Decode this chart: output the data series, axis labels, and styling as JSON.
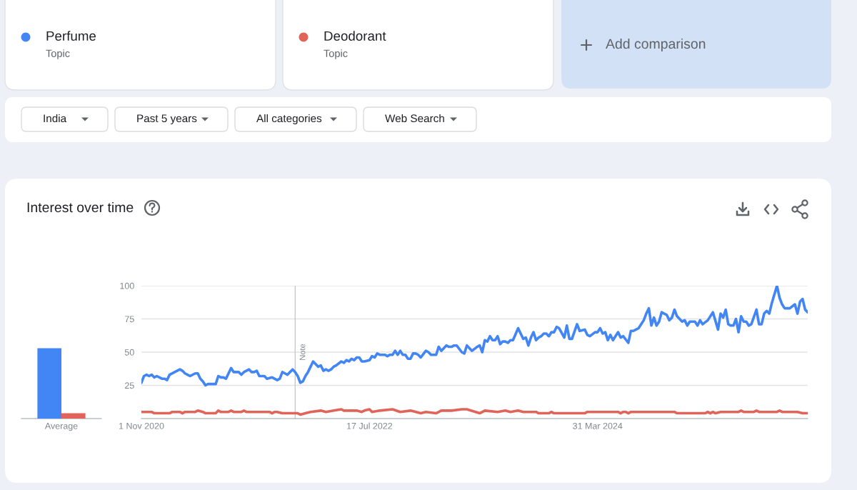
{
  "chart_data": [
    {
      "type": "bar",
      "title": "Interest over time",
      "categories": [
        "Average"
      ],
      "series": [
        {
          "color": "#4285f4",
          "values": [
            53
          ]
        },
        {
          "color": "#e0645a",
          "values": [
            4
          ]
        }
      ],
      "ylim": [
        0,
        100
      ],
      "tick_labels": "x"
    },
    {
      "type": "line",
      "annotations": [
        "Topic",
        "Topic",
        "Add comparison",
        "India",
        "Past 5 years",
        "All categories",
        "Web Search"
      ],
      "legend": "top",
      "grid": "y",
      "line_style": "solid",
      "xlim": [
        "2020-11-01",
        "2025-10-26"
      ],
      "ylim": [
        0,
        100
      ],
      "yticks": [
        25,
        50,
        75,
        100
      ],
      "xticks": [
        {
          "value": "2020-11-01",
          "label": "1 Nov 2020"
        },
        {
          "value": "2022-07-17",
          "label": "17 Jul 2022"
        },
        {
          "value": "2024-03-31",
          "label": "31 Mar 2024"
        }
      ],
      "ref_lines": [
        {
          "axis": "x",
          "value": "2021-12-26",
          "label": "Note",
          "color": "#c8c8c8"
        }
      ],
      "series": [
        {
          "name": "Perfume",
          "color": "#4285f4",
          "x": [
            "2020-11-01",
            "2020-11-08",
            "2020-11-15",
            "2020-11-22",
            "2020-11-29",
            "2020-12-06",
            "2020-12-13",
            "2020-12-27",
            "2021-01-03",
            "2021-01-10",
            "2021-01-17",
            "2021-01-31",
            "2021-02-14",
            "2021-02-21",
            "2021-02-28",
            "2021-03-07",
            "2021-03-14",
            "2021-03-28",
            "2021-04-04",
            "2021-04-11",
            "2021-04-18",
            "2021-04-25",
            "2021-05-02",
            "2021-05-23",
            "2021-05-30",
            "2021-06-06",
            "2021-06-13",
            "2021-06-20",
            "2021-07-04",
            "2021-07-11",
            "2021-07-25",
            "2021-08-01",
            "2021-08-08",
            "2021-08-22",
            "2021-08-29",
            "2021-09-05",
            "2021-09-12",
            "2021-09-19",
            "2021-10-03",
            "2021-10-10",
            "2021-10-24",
            "2021-11-07",
            "2021-11-14",
            "2021-11-21",
            "2021-11-28",
            "2021-12-05",
            "2021-12-19",
            "2021-12-26",
            "2022-01-02",
            "2022-01-09",
            "2022-01-16",
            "2022-01-23",
            "2022-01-30",
            "2022-02-13",
            "2022-02-20",
            "2022-02-27",
            "2022-03-06",
            "2022-03-13",
            "2022-03-20",
            "2022-03-27",
            "2022-04-03",
            "2022-04-10",
            "2022-04-17",
            "2022-05-01",
            "2022-05-08",
            "2022-05-15",
            "2022-05-22",
            "2022-05-29",
            "2022-06-05",
            "2022-06-12",
            "2022-06-19",
            "2022-06-26",
            "2022-07-03",
            "2022-07-17",
            "2022-07-24",
            "2022-07-31",
            "2022-08-07",
            "2022-08-14",
            "2022-08-21",
            "2022-08-28",
            "2022-09-04",
            "2022-09-11",
            "2022-09-18",
            "2022-09-25",
            "2022-10-02",
            "2022-10-09",
            "2022-10-16",
            "2022-10-23",
            "2022-10-30",
            "2022-11-06",
            "2022-11-13",
            "2022-11-20",
            "2022-11-27",
            "2022-12-04",
            "2022-12-18",
            "2022-12-25",
            "2023-01-01",
            "2023-01-15",
            "2023-01-22",
            "2023-01-29",
            "2023-02-05",
            "2023-02-12",
            "2023-02-19",
            "2023-02-26",
            "2023-03-05",
            "2023-03-12",
            "2023-03-26",
            "2023-04-02",
            "2023-04-09",
            "2023-04-16",
            "2023-04-23",
            "2023-05-07",
            "2023-05-14",
            "2023-05-21",
            "2023-05-28",
            "2023-06-04",
            "2023-06-11",
            "2023-06-18",
            "2023-06-25",
            "2023-07-02",
            "2023-07-09",
            "2023-07-16",
            "2023-07-23",
            "2023-07-30",
            "2023-08-06",
            "2023-08-13",
            "2023-08-27",
            "2023-09-03",
            "2023-09-10",
            "2023-09-17",
            "2023-09-24",
            "2023-10-01",
            "2023-10-08",
            "2023-10-15",
            "2023-10-22",
            "2023-10-29",
            "2023-11-05",
            "2023-11-12",
            "2023-11-19",
            "2023-11-26",
            "2023-12-03",
            "2023-12-10",
            "2023-12-17",
            "2023-12-31",
            "2024-01-07",
            "2024-01-14",
            "2024-01-21",
            "2024-02-04",
            "2024-02-11",
            "2024-02-25",
            "2024-03-03",
            "2024-03-10",
            "2024-03-24",
            "2024-03-31",
            "2024-04-07",
            "2024-04-14",
            "2024-04-21",
            "2024-04-28",
            "2024-05-05",
            "2024-05-12",
            "2024-05-26",
            "2024-06-02",
            "2024-06-09",
            "2024-06-23",
            "2024-06-30",
            "2024-07-07",
            "2024-07-14",
            "2024-07-21",
            "2024-08-04",
            "2024-08-11",
            "2024-08-18",
            "2024-08-25",
            "2024-09-01",
            "2024-09-08",
            "2024-09-15",
            "2024-09-22",
            "2024-09-29",
            "2024-10-06",
            "2024-10-13",
            "2024-10-20",
            "2024-10-27",
            "2024-11-03",
            "2024-11-17",
            "2024-11-24",
            "2024-12-01",
            "2024-12-08",
            "2024-12-22",
            "2024-12-29",
            "2025-01-05",
            "2025-01-12",
            "2025-01-26",
            "2025-02-09",
            "2025-02-23",
            "2025-03-02",
            "2025-03-09",
            "2025-03-16",
            "2025-03-23",
            "2025-03-30",
            "2025-04-06",
            "2025-04-13",
            "2025-04-20",
            "2025-04-27",
            "2025-05-04",
            "2025-05-11",
            "2025-05-18",
            "2025-05-25",
            "2025-06-08",
            "2025-06-15",
            "2025-06-22",
            "2025-06-29",
            "2025-07-06",
            "2025-07-13",
            "2025-07-20",
            "2025-08-03",
            "2025-08-10",
            "2025-08-17",
            "2025-08-24",
            "2025-09-07",
            "2025-09-21",
            "2025-09-28",
            "2025-10-05",
            "2025-10-12",
            "2025-10-19",
            "2025-10-26"
          ],
          "values": [
            27,
            32,
            33,
            32,
            33,
            31,
            32,
            30,
            30,
            29,
            33,
            35,
            37,
            36,
            34,
            33,
            32,
            34,
            34,
            30,
            28,
            25,
            26,
            26,
            32,
            31,
            31,
            30,
            38,
            35,
            35,
            33,
            35,
            37,
            35,
            35,
            36,
            32,
            32,
            30,
            31,
            29,
            30,
            35,
            34,
            33,
            37,
            35,
            32,
            27,
            28,
            32,
            35,
            43,
            41,
            39,
            40,
            36,
            37,
            36,
            37,
            39,
            40,
            43,
            42,
            44,
            43,
            45,
            44,
            46,
            46,
            43,
            43,
            44,
            47,
            46,
            49,
            48,
            48,
            48,
            47,
            48,
            48,
            51,
            48,
            51,
            48,
            48,
            45,
            45,
            49,
            49,
            48,
            46,
            51,
            50,
            48,
            48,
            54,
            51,
            53,
            55,
            54,
            54,
            55,
            55,
            50,
            49,
            55,
            53,
            51,
            54,
            55,
            50,
            59,
            58,
            62,
            59,
            59,
            62,
            56,
            58,
            58,
            57,
            59,
            59,
            68,
            64,
            60,
            61,
            55,
            61,
            65,
            59,
            61,
            62,
            64,
            64,
            62,
            65,
            65,
            69,
            68,
            61,
            70,
            60,
            60,
            71,
            66,
            67,
            63,
            62,
            65,
            65,
            68,
            64,
            65,
            59,
            63,
            59,
            65,
            61,
            62,
            57,
            66,
            66,
            67,
            68,
            74,
            79,
            83,
            70,
            76,
            70,
            73,
            80,
            79,
            78,
            74,
            76,
            82,
            77,
            73,
            74,
            70,
            73,
            73,
            70,
            74,
            71,
            74,
            80,
            67,
            79,
            76,
            82,
            71,
            70,
            70,
            75,
            65,
            77,
            73,
            73,
            70,
            71,
            82,
            71,
            71,
            79,
            81,
            79,
            87,
            100,
            91,
            86,
            83,
            83,
            86,
            79,
            88,
            90,
            82,
            80
          ]
        },
        {
          "name": "Deodorant",
          "color": "#e0645a",
          "x": [
            "2020-11-01",
            "2020-11-29",
            "2020-12-06",
            "2021-01-17",
            "2021-01-24",
            "2021-02-14",
            "2021-02-21",
            "2021-02-28",
            "2021-03-28",
            "2021-04-04",
            "2021-04-18",
            "2021-04-25",
            "2021-05-23",
            "2021-05-30",
            "2021-06-06",
            "2021-06-27",
            "2021-07-04",
            "2021-07-11",
            "2021-08-01",
            "2021-08-08",
            "2021-08-15",
            "2021-10-17",
            "2021-10-24",
            "2021-10-31",
            "2021-11-07",
            "2021-11-21",
            "2022-01-02",
            "2022-01-09",
            "2022-01-23",
            "2022-02-06",
            "2022-03-06",
            "2022-03-20",
            "2022-04-10",
            "2022-05-01",
            "2022-05-08",
            "2022-06-12",
            "2022-06-26",
            "2022-07-03",
            "2022-07-17",
            "2022-07-24",
            "2022-08-14",
            "2022-09-18",
            "2022-10-09",
            "2022-11-06",
            "2022-12-04",
            "2022-12-18",
            "2023-01-15",
            "2023-01-29",
            "2023-02-26",
            "2023-03-26",
            "2023-04-09",
            "2023-05-14",
            "2023-05-28",
            "2023-07-02",
            "2023-07-23",
            "2023-08-06",
            "2023-08-27",
            "2023-09-10",
            "2023-10-15",
            "2023-10-22",
            "2023-11-19",
            "2023-11-26",
            "2023-12-03",
            "2024-02-25",
            "2024-03-03",
            "2024-05-26",
            "2024-06-02",
            "2024-06-09",
            "2024-06-16",
            "2024-06-23",
            "2024-06-30",
            "2024-10-27",
            "2024-11-03",
            "2025-01-19",
            "2025-01-26",
            "2025-02-02",
            "2025-02-09",
            "2025-02-16",
            "2025-03-02",
            "2025-04-20",
            "2025-04-27",
            "2025-05-04",
            "2025-06-01",
            "2025-06-08",
            "2025-06-15",
            "2025-08-03",
            "2025-08-10",
            "2025-08-17",
            "2025-09-28",
            "2025-10-12",
            "2025-10-26"
          ],
          "values": [
            5,
            5,
            4,
            4,
            5,
            5,
            4,
            5,
            5,
            6,
            5,
            4,
            4,
            6,
            5,
            5,
            6,
            5,
            5,
            6,
            5,
            5,
            4,
            5,
            5,
            4,
            4,
            3,
            4,
            5,
            6,
            5,
            6,
            7,
            6,
            6,
            5,
            6,
            7,
            5,
            6,
            7,
            5,
            6,
            4,
            5,
            4,
            6,
            6,
            7,
            7,
            4,
            6,
            5,
            6,
            5,
            6,
            5,
            5,
            4,
            4,
            5,
            4,
            4,
            5,
            5,
            4,
            5,
            5,
            4,
            5,
            5,
            4,
            4,
            5,
            4,
            5,
            4,
            5,
            5,
            6,
            5,
            5,
            6,
            5,
            5,
            6,
            5,
            5,
            4,
            4
          ]
        }
      ]
    }
  ]
}
